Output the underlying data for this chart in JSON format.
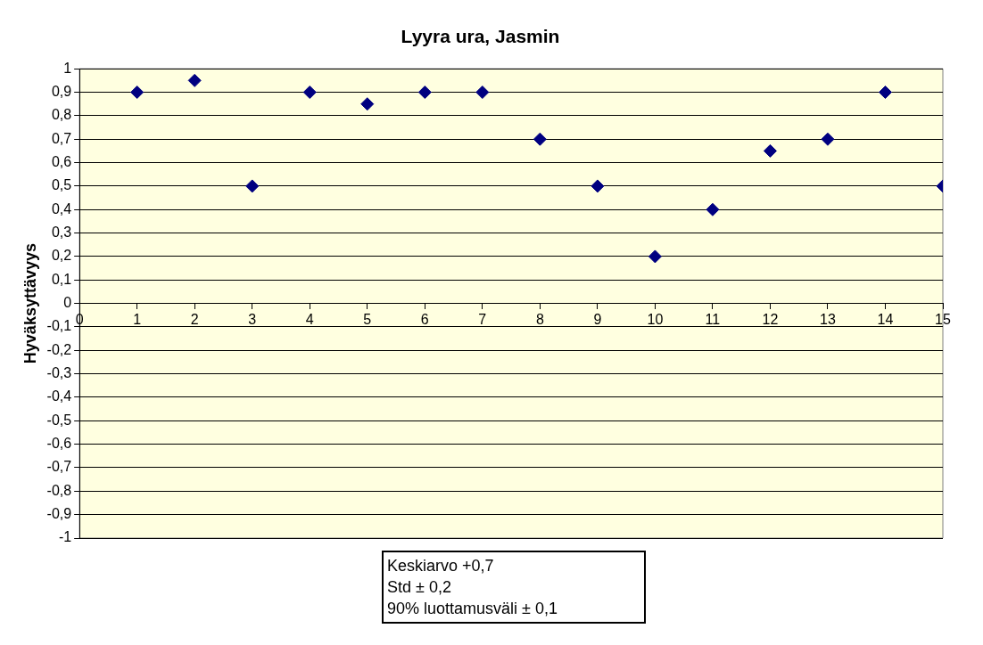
{
  "chart_data": {
    "type": "scatter",
    "title": "Lyyra ura, Jasmin",
    "ylabel": "Hyväksyttävyys",
    "x": [
      1,
      2,
      3,
      4,
      5,
      6,
      7,
      8,
      9,
      10,
      11,
      12,
      13,
      14,
      15
    ],
    "series": [
      {
        "color": "#000080",
        "values": [
          0.9,
          0.95,
          0.5,
          0.9,
          0.85,
          0.9,
          0.9,
          0.7,
          0.5,
          0.2,
          0.4,
          0.65,
          0.7,
          0.9,
          0.5
        ]
      }
    ],
    "xlim": [
      0,
      15
    ],
    "xticks": [
      0,
      1,
      2,
      3,
      4,
      5,
      6,
      7,
      8,
      9,
      10,
      11,
      12,
      13,
      14,
      15
    ],
    "ylim": [
      -1,
      1
    ],
    "yticks": [
      {
        "value": -1,
        "label": "-1"
      },
      {
        "value": -0.9,
        "label": "-0,9"
      },
      {
        "value": -0.8,
        "label": "-0,8"
      },
      {
        "value": -0.7,
        "label": "-0,7"
      },
      {
        "value": -0.6,
        "label": "-0,6"
      },
      {
        "value": -0.5,
        "label": "-0,5"
      },
      {
        "value": -0.4,
        "label": "-0,4"
      },
      {
        "value": -0.3,
        "label": "-0,3"
      },
      {
        "value": -0.2,
        "label": "-0,2"
      },
      {
        "value": -0.1,
        "label": "-0,1"
      },
      {
        "value": 0,
        "label": "0"
      },
      {
        "value": 0.1,
        "label": "0,1"
      },
      {
        "value": 0.2,
        "label": "0,2"
      },
      {
        "value": 0.3,
        "label": "0,3"
      },
      {
        "value": 0.4,
        "label": "0,4"
      },
      {
        "value": 0.5,
        "label": "0,5"
      },
      {
        "value": 0.6,
        "label": "0,6"
      },
      {
        "value": 0.7,
        "label": "0,7"
      },
      {
        "value": 0.8,
        "label": "0,8"
      },
      {
        "value": 0.9,
        "label": "0,9"
      },
      {
        "value": 1,
        "label": "1"
      }
    ],
    "grid": "y",
    "legend": false,
    "marker": "diamond",
    "annotations": [
      "Keskiarvo  +0,7",
      "Std ± 0,2",
      "90% luottamusväli ± 0,1"
    ]
  }
}
